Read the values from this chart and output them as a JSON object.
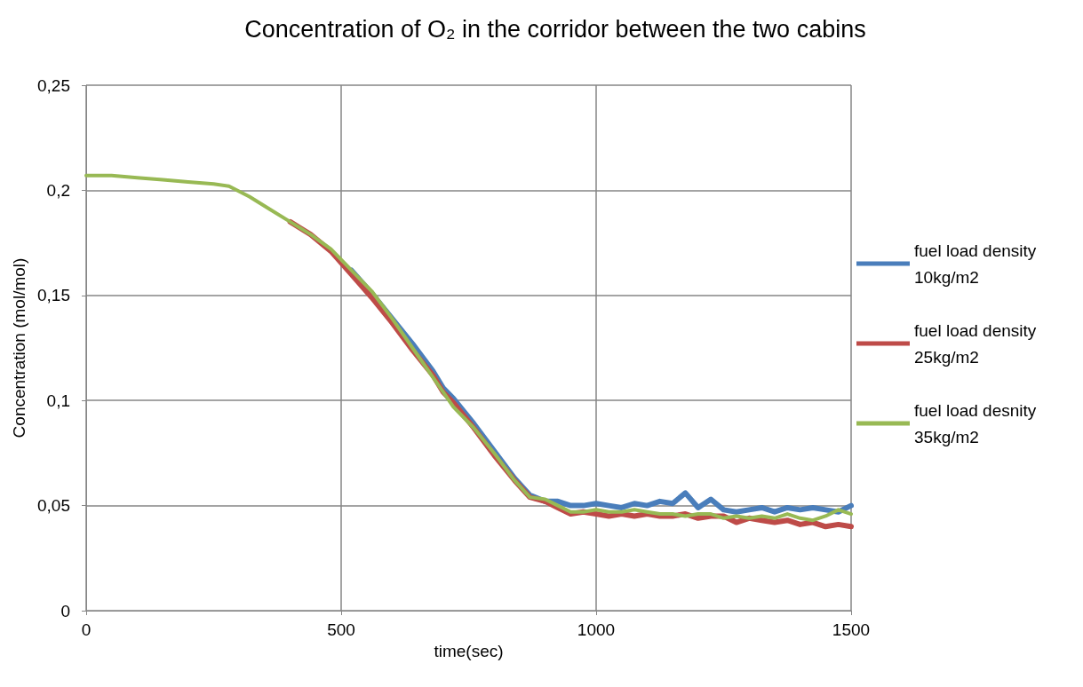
{
  "chart_data": {
    "type": "line",
    "title": "Concentration of O₂ in the corridor between the two cabins",
    "xlabel": "time(sec)",
    "ylabel": "Concentration (mol/mol)",
    "x": [
      0,
      50,
      100,
      150,
      200,
      250,
      280,
      320,
      360,
      400,
      440,
      480,
      520,
      560,
      600,
      640,
      680,
      700,
      720,
      760,
      800,
      840,
      870,
      900,
      925,
      950,
      975,
      1000,
      1025,
      1050,
      1075,
      1100,
      1125,
      1150,
      1175,
      1200,
      1225,
      1250,
      1275,
      1300,
      1325,
      1350,
      1375,
      1400,
      1425,
      1450,
      1475,
      1500
    ],
    "series": [
      {
        "name": "fuel load density 10kg/m2",
        "color": "#4a7ebb",
        "values": [
          null,
          null,
          null,
          null,
          null,
          null,
          null,
          null,
          null,
          null,
          null,
          null,
          0.162,
          0.151,
          0.139,
          0.127,
          0.114,
          0.106,
          0.101,
          0.089,
          0.076,
          0.063,
          0.055,
          0.052,
          0.052,
          0.05,
          0.05,
          0.051,
          0.05,
          0.049,
          0.051,
          0.05,
          0.052,
          0.051,
          0.056,
          0.049,
          0.053,
          0.048,
          0.047,
          0.048,
          0.049,
          0.047,
          0.049,
          0.048,
          0.049,
          0.048,
          0.047,
          0.05
        ]
      },
      {
        "name": "fuel load density 25kg/m2",
        "color": "#be4b48",
        "values": [
          null,
          null,
          null,
          null,
          null,
          null,
          null,
          null,
          null,
          0.185,
          0.179,
          0.171,
          0.16,
          0.149,
          0.137,
          0.124,
          0.112,
          0.104,
          0.099,
          0.087,
          0.074,
          0.062,
          0.054,
          0.052,
          0.049,
          0.046,
          0.047,
          0.046,
          0.045,
          0.046,
          0.045,
          0.046,
          0.045,
          0.045,
          0.046,
          0.044,
          0.045,
          0.045,
          0.042,
          0.044,
          0.043,
          0.042,
          0.043,
          0.041,
          0.042,
          0.04,
          0.041,
          0.04
        ]
      },
      {
        "name": "fuel load desnity 35kg/m2",
        "color": "#98b954",
        "values": [
          0.207,
          0.207,
          0.206,
          0.205,
          0.204,
          0.203,
          0.202,
          0.197,
          0.191,
          0.185,
          0.179,
          0.172,
          0.162,
          0.152,
          0.139,
          0.125,
          0.111,
          0.104,
          0.097,
          0.087,
          0.075,
          0.062,
          0.054,
          0.053,
          0.05,
          0.047,
          0.047,
          0.048,
          0.047,
          0.047,
          0.048,
          0.047,
          0.046,
          0.046,
          0.045,
          0.046,
          0.046,
          0.044,
          0.045,
          0.044,
          0.045,
          0.044,
          0.046,
          0.044,
          0.043,
          0.045,
          0.048,
          0.046
        ]
      }
    ],
    "xlim": [
      0,
      1500
    ],
    "xticks": [
      0,
      500,
      1000,
      1500
    ],
    "ylim": [
      0,
      0.25
    ],
    "yticks": [
      0,
      {
        "value": 0.05,
        "label": "0,05"
      },
      {
        "value": 0.1,
        "label": "0,1"
      },
      {
        "value": 0.15,
        "label": "0,15"
      },
      {
        "value": 0.2,
        "label": "0,2"
      },
      {
        "value": 0.25,
        "label": "0,25"
      }
    ],
    "grid": true,
    "legend": "right",
    "marker": "none",
    "line_style": "solid"
  }
}
